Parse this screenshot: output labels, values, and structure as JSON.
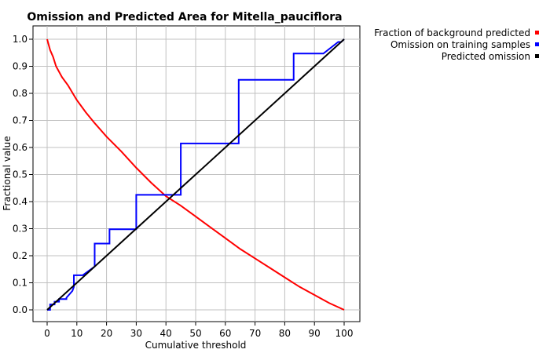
{
  "chart_data": {
    "type": "line",
    "title": "Omission and Predicted Area for Mitella_pauciflora",
    "xlabel": "Cumulative threshold",
    "ylabel": "Fractional value",
    "xlim": [
      0,
      100
    ],
    "ylim": [
      0,
      1.0
    ],
    "x_ticks": [
      "0",
      "10",
      "20",
      "30",
      "40",
      "50",
      "60",
      "70",
      "80",
      "90",
      "100"
    ],
    "y_ticks": [
      "0.0",
      "0.1",
      "0.2",
      "0.3",
      "0.4",
      "0.5",
      "0.6",
      "0.7",
      "0.8",
      "0.9",
      "1.0"
    ],
    "grid": true,
    "legend_position": "top-right outside",
    "series": [
      {
        "name": "Fraction of background predicted",
        "color": "#ff0000",
        "style": "line",
        "x": [
          0,
          1,
          2,
          3,
          5,
          7,
          10,
          13,
          16,
          20,
          25,
          30,
          35,
          40,
          45,
          50,
          55,
          60,
          65,
          70,
          75,
          80,
          85,
          90,
          95,
          100
        ],
        "y": [
          1.0,
          0.96,
          0.935,
          0.9,
          0.86,
          0.83,
          0.775,
          0.73,
          0.69,
          0.64,
          0.585,
          0.525,
          0.47,
          0.42,
          0.385,
          0.345,
          0.305,
          0.265,
          0.225,
          0.19,
          0.155,
          0.12,
          0.085,
          0.055,
          0.025,
          0.0
        ]
      },
      {
        "name": "Omission on training samples",
        "color": "#0000ff",
        "style": "step",
        "x": [
          0,
          1,
          1,
          2.5,
          2.5,
          4,
          4,
          6.5,
          6.5,
          8.5,
          9,
          9,
          12,
          16,
          16,
          21,
          21,
          30,
          30,
          45,
          45,
          64.5,
          64.5,
          83,
          83,
          93,
          98,
          98,
          99,
          100
        ],
        "y": [
          0.0,
          0.0,
          0.02,
          0.02,
          0.03,
          0.03,
          0.04,
          0.04,
          0.045,
          0.07,
          0.085,
          0.128,
          0.128,
          0.16,
          0.245,
          0.245,
          0.298,
          0.298,
          0.425,
          0.425,
          0.615,
          0.615,
          0.85,
          0.85,
          0.947,
          0.947,
          0.99,
          0.99,
          0.99,
          1.0
        ]
      },
      {
        "name": "Predicted omission",
        "color": "#000000",
        "style": "line",
        "x": [
          0,
          100
        ],
        "y": [
          0.0,
          1.0
        ]
      }
    ]
  }
}
